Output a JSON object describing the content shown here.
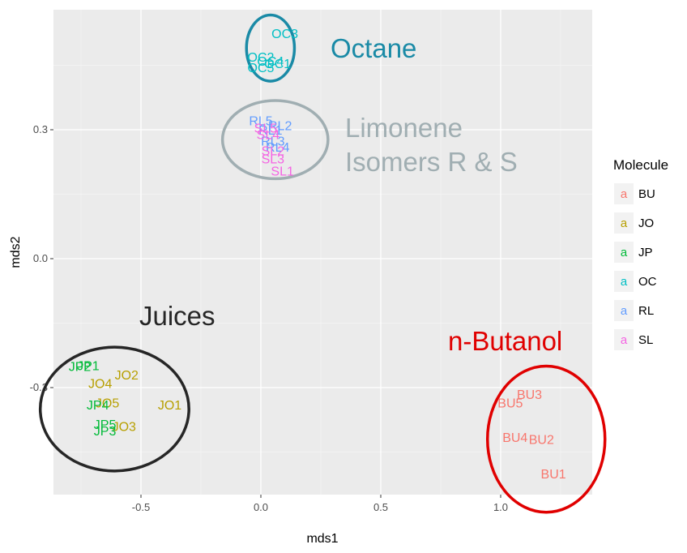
{
  "chart_data": {
    "type": "scatter",
    "xlabel": "mds1",
    "ylabel": "mds2",
    "xlim": [
      -0.87,
      1.37
    ],
    "ylim": [
      -0.55,
      0.58
    ],
    "x_ticks": [
      -0.5,
      0.0,
      0.5,
      1.0
    ],
    "x_tick_labels": [
      "-0.5",
      "0.0",
      "0.5",
      "1.0"
    ],
    "y_ticks": [
      -0.3,
      0.0,
      0.3
    ],
    "y_tick_labels": [
      "-0.3",
      "0.0",
      "0.3"
    ],
    "grid": true,
    "legend": {
      "title": "Molecule",
      "position": "right",
      "glyph": "a",
      "entries": [
        "BU",
        "JO",
        "JP",
        "OC",
        "RL",
        "SL"
      ]
    },
    "series": [
      {
        "name": "BU",
        "color": "#F8766D",
        "points": [
          {
            "label": "BU1",
            "x": 1.22,
            "y": -0.5
          },
          {
            "label": "BU2",
            "x": 1.17,
            "y": -0.42
          },
          {
            "label": "BU3",
            "x": 1.12,
            "y": -0.315
          },
          {
            "label": "BU4",
            "x": 1.06,
            "y": -0.415
          },
          {
            "label": "BU5",
            "x": 1.04,
            "y": -0.335
          }
        ]
      },
      {
        "name": "JO",
        "color": "#B79F00",
        "points": [
          {
            "label": "JO1",
            "x": -0.38,
            "y": -0.34
          },
          {
            "label": "JO2",
            "x": -0.56,
            "y": -0.27
          },
          {
            "label": "JO3",
            "x": -0.57,
            "y": -0.39
          },
          {
            "label": "JO4",
            "x": -0.67,
            "y": -0.29
          },
          {
            "label": "JO5",
            "x": -0.64,
            "y": -0.335
          }
        ]
      },
      {
        "name": "JP",
        "color": "#00BA38",
        "points": [
          {
            "label": "JP1",
            "x": -0.72,
            "y": -0.248
          },
          {
            "label": "JP2",
            "x": -0.755,
            "y": -0.25
          },
          {
            "label": "JP3",
            "x": -0.65,
            "y": -0.4
          },
          {
            "label": "JP4",
            "x": -0.68,
            "y": -0.34
          },
          {
            "label": "JP5",
            "x": -0.65,
            "y": -0.385
          }
        ]
      },
      {
        "name": "OC",
        "color": "#00BFC4",
        "points": [
          {
            "label": "OC1",
            "x": 0.07,
            "y": 0.455
          },
          {
            "label": "OC2",
            "x": 0.0,
            "y": 0.47
          },
          {
            "label": "OC3",
            "x": 0.1,
            "y": 0.525
          },
          {
            "label": "OC4",
            "x": 0.04,
            "y": 0.46
          },
          {
            "label": "OC5",
            "x": 0.0,
            "y": 0.445
          }
        ]
      },
      {
        "name": "RL",
        "color": "#619CFF",
        "points": [
          {
            "label": "RL1",
            "x": 0.04,
            "y": 0.3
          },
          {
            "label": "RL2",
            "x": 0.08,
            "y": 0.31
          },
          {
            "label": "RL3",
            "x": 0.05,
            "y": 0.275
          },
          {
            "label": "RL4",
            "x": 0.07,
            "y": 0.26
          },
          {
            "label": "RL5",
            "x": 0.0,
            "y": 0.322
          }
        ]
      },
      {
        "name": "SL",
        "color": "#F564E3",
        "points": [
          {
            "label": "SL1",
            "x": 0.09,
            "y": 0.205
          },
          {
            "label": "SL2",
            "x": 0.05,
            "y": 0.252
          },
          {
            "label": "SL3",
            "x": 0.05,
            "y": 0.233
          },
          {
            "label": "SL4",
            "x": 0.03,
            "y": 0.29
          },
          {
            "label": "SL5",
            "x": 0.02,
            "y": 0.305
          }
        ]
      }
    ],
    "annotations": [
      {
        "text": "Octane",
        "color": "#1a8aa6",
        "ellipse_color": "#1a8aa6",
        "ellipse": {
          "cx": 0.04,
          "cy": 0.49,
          "rx": 0.2,
          "ry": 0.077
        }
      },
      {
        "text": "Limonene",
        "color": "#a0aeb2",
        "ellipse_color": "#a0aeb2",
        "ellipse": {
          "cx": 0.06,
          "cy": 0.277,
          "rx": 0.44,
          "ry": 0.091
        }
      },
      {
        "text": "Isomers R & S",
        "color": "#a0aeb2",
        "ellipse_color": null,
        "ellipse": null
      },
      {
        "text": "Juices",
        "color": "#262626",
        "ellipse_color": "#262626",
        "ellipse": {
          "cx": -0.61,
          "cy": -0.35,
          "rx": 0.62,
          "ry": 0.144
        }
      },
      {
        "text": "n-Butanol",
        "color": "#e00000",
        "ellipse_color": "#e00000",
        "ellipse": {
          "cx": 1.19,
          "cy": -0.42,
          "rx": 0.49,
          "ry": 0.17
        }
      }
    ]
  }
}
